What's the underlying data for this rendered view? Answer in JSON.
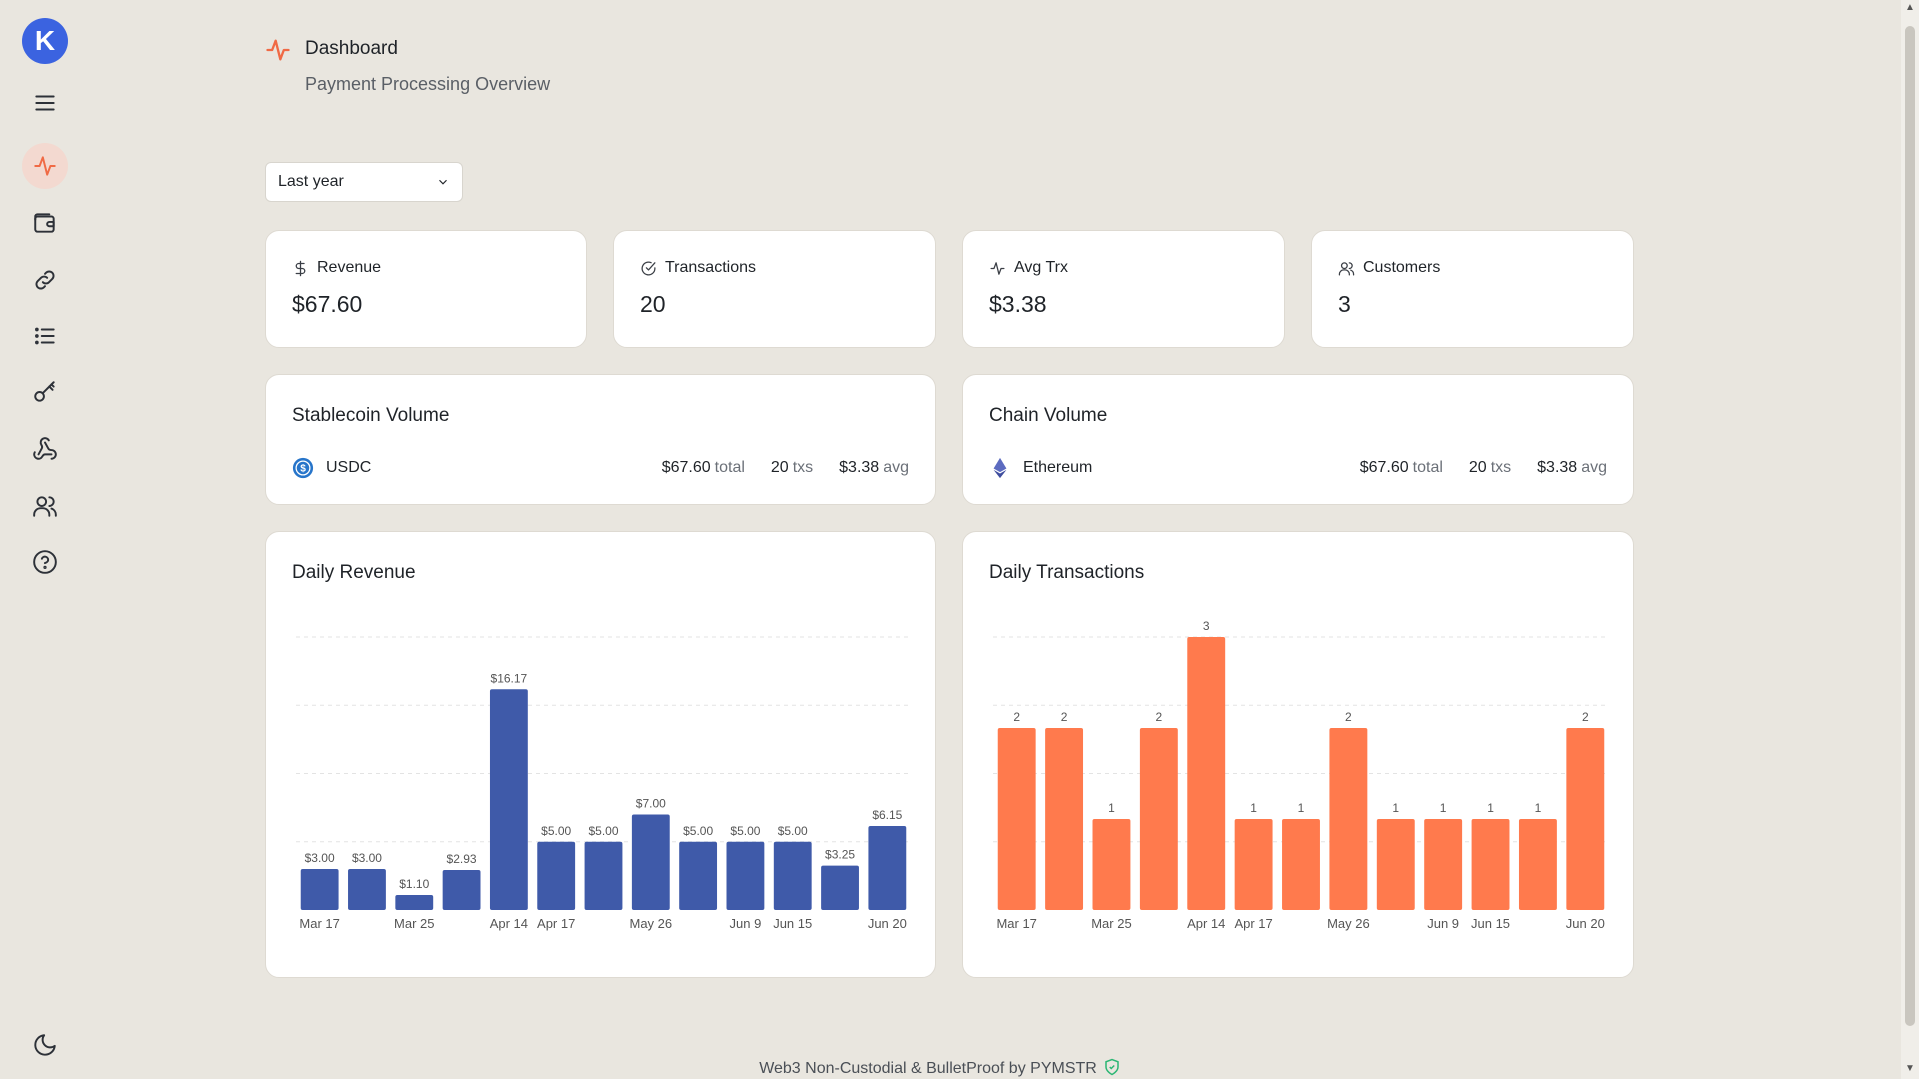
{
  "app": {
    "logo_letter": "K"
  },
  "sidebar": {
    "items": [
      {
        "icon": "menu-icon"
      },
      {
        "icon": "activity-icon",
        "active": true
      },
      {
        "icon": "wallet-icon"
      },
      {
        "icon": "link-icon"
      },
      {
        "icon": "list-icon"
      },
      {
        "icon": "key-icon"
      },
      {
        "icon": "webhook-icon"
      },
      {
        "icon": "users-icon"
      },
      {
        "icon": "help-icon"
      }
    ],
    "theme_icon": "moon-icon"
  },
  "header": {
    "title": "Dashboard",
    "subtitle": "Payment Processing Overview"
  },
  "filter": {
    "selected": "Last year"
  },
  "stats": [
    {
      "label": "Revenue",
      "value": "$67.60",
      "icon": "dollar-icon"
    },
    {
      "label": "Transactions",
      "value": "20",
      "icon": "check-circle-icon"
    },
    {
      "label": "Avg Trx",
      "value": "$3.38",
      "icon": "activity-icon"
    },
    {
      "label": "Customers",
      "value": "3",
      "icon": "users-icon"
    }
  ],
  "stablecoin": {
    "title": "Stablecoin Volume",
    "name": "USDC",
    "total": "$67.60",
    "total_unit": "total",
    "txs": "20",
    "txs_unit": "txs",
    "avg": "$3.38",
    "avg_unit": "avg"
  },
  "chain": {
    "title": "Chain Volume",
    "name": "Ethereum",
    "total": "$67.60",
    "total_unit": "total",
    "txs": "20",
    "txs_unit": "txs",
    "avg": "$3.38",
    "avg_unit": "avg"
  },
  "colors": {
    "revenue_bar": "#3f5aa9",
    "tx_bar": "#ff7a4d",
    "accent": "#f06a45"
  },
  "chart_data": [
    {
      "type": "bar",
      "title": "Daily Revenue",
      "categories": [
        "Mar 17",
        "",
        "Mar 25",
        "",
        "Apr 14",
        "Apr 17",
        "",
        "May 26",
        "",
        "Jun 9",
        "Jun 15",
        "",
        "Jun 20"
      ],
      "values": [
        3.0,
        3.0,
        1.1,
        2.93,
        16.17,
        5.0,
        5.0,
        7.0,
        5.0,
        5.0,
        5.0,
        3.25,
        6.15
      ],
      "data_labels": [
        "$3.00",
        "$3.00",
        "$1.10",
        "$2.93",
        "$16.17",
        "$5.00",
        "$5.00",
        "$7.00",
        "$5.00",
        "$5.00",
        "$5.00",
        "$3.25",
        "$6.15"
      ],
      "ylim": [
        0,
        20
      ],
      "grid": true
    },
    {
      "type": "bar",
      "title": "Daily Transactions",
      "categories": [
        "Mar 17",
        "",
        "Mar 25",
        "",
        "Apr 14",
        "Apr 17",
        "",
        "May 26",
        "",
        "Jun 9",
        "Jun 15",
        "",
        "Jun 20"
      ],
      "values": [
        2,
        2,
        1,
        2,
        3,
        1,
        1,
        2,
        1,
        1,
        1,
        1,
        2
      ],
      "data_labels": [
        "2",
        "2",
        "1",
        "2",
        "3",
        "1",
        "1",
        "2",
        "1",
        "1",
        "1",
        "1",
        "2"
      ],
      "ylim": [
        0,
        3
      ],
      "grid": true
    }
  ],
  "footer": {
    "text": "Web3 Non-Custodial & BulletProof by PYMSTR"
  }
}
